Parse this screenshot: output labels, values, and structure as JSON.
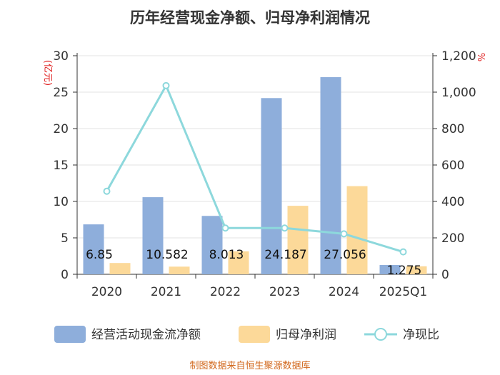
{
  "chart_data": {
    "type": "bar",
    "title": "历年经营现金净额、归母净利润情况",
    "categories": [
      "2020",
      "2021",
      "2022",
      "2023",
      "2024",
      "2025Q1"
    ],
    "series": [
      {
        "name": "经营活动现金流净额",
        "type": "bar",
        "axis": "left",
        "color": "#8eaedb",
        "values": [
          6.85,
          10.582,
          8.013,
          24.187,
          27.056,
          1.275
        ]
      },
      {
        "name": "归母净利润",
        "type": "bar",
        "axis": "left",
        "color": "#fcd999",
        "values": [
          1.55,
          1.05,
          3.15,
          9.4,
          12.1,
          1.1
        ]
      },
      {
        "name": "净现比",
        "type": "line",
        "axis": "right",
        "color": "#8dd8dc",
        "values": [
          456,
          1036,
          254,
          254,
          222,
          123
        ]
      }
    ],
    "data_labels": [
      "6.85",
      "10.582",
      "8.013",
      "24.187",
      "27.056",
      "1.275"
    ],
    "left_axis": {
      "label": "(亿元)",
      "min": 0,
      "max": 30,
      "ticks": [
        0,
        5,
        10,
        15,
        20,
        25,
        30
      ],
      "tick_labels": [
        "0",
        "5",
        "10",
        "15",
        "20",
        "25",
        "30"
      ]
    },
    "right_axis": {
      "label": "%",
      "min": 0,
      "max": 1200,
      "ticks": [
        0,
        200,
        400,
        600,
        800,
        1000,
        1200
      ],
      "tick_labels": [
        "0",
        "200",
        "400",
        "600",
        "800",
        "1,000",
        "1,200"
      ]
    },
    "grid": true,
    "legend": "bottom"
  },
  "footer": {
    "source": "制图数据来自恒生聚源数据库"
  }
}
